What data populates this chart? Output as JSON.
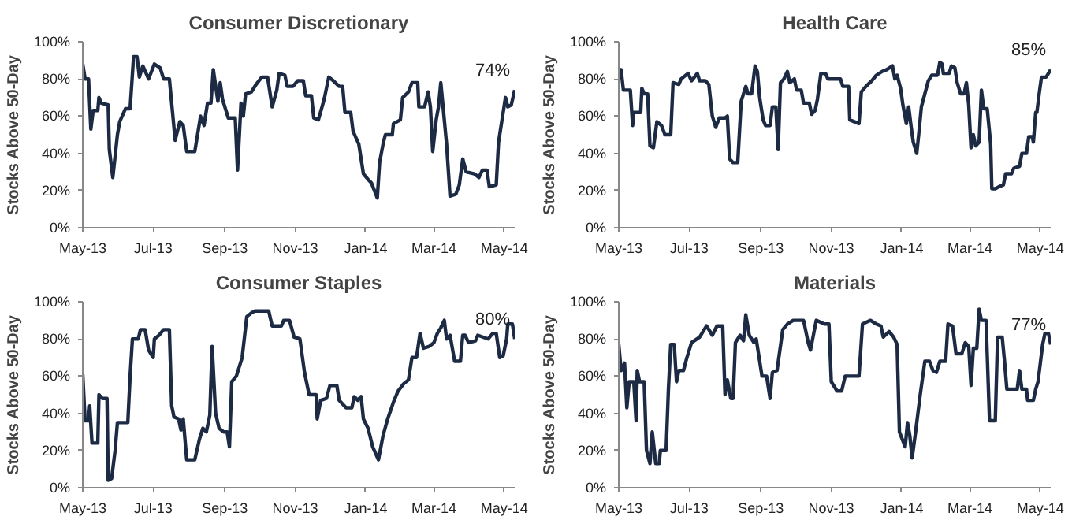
{
  "chart_data": [
    {
      "type": "line",
      "title": "Consumer Discretionary",
      "ylabel": "Stocks Above 50-Day",
      "xlim": [
        "2013-05-01",
        "2014-05-10"
      ],
      "ylim": [
        0,
        100
      ],
      "xticks": [
        {
          "value": "2013-05-01",
          "label": "May-13"
        },
        {
          "value": "2013-07-01",
          "label": "Jul-13"
        },
        {
          "value": "2013-09-01",
          "label": "Sep-13"
        },
        {
          "value": "2013-11-01",
          "label": "Nov-13"
        },
        {
          "value": "2014-01-01",
          "label": "Jan-14"
        },
        {
          "value": "2014-03-01",
          "label": "Mar-14"
        },
        {
          "value": "2014-05-01",
          "label": "May-14"
        }
      ],
      "yticks": [
        {
          "value": 0,
          "label": "0%"
        },
        {
          "value": 20,
          "label": "20%"
        },
        {
          "value": 40,
          "label": "40%"
        },
        {
          "value": 60,
          "label": "60%"
        },
        {
          "value": 80,
          "label": "80%"
        },
        {
          "value": 100,
          "label": "100%"
        }
      ],
      "grid": false,
      "marker": "none",
      "line_style": "solid",
      "annotations": [
        {
          "text": "74%",
          "x": "2014-05-10",
          "y": 74
        }
      ],
      "series": [
        {
          "color": "#1c2a44",
          "x": [
            "2013-05-01",
            "2013-05-03",
            "2013-05-06",
            "2013-05-08",
            "2013-05-10",
            "2013-05-14",
            "2013-05-15",
            "2013-05-17",
            "2013-05-23",
            "2013-05-24",
            "2013-05-27",
            "2013-05-31",
            "2013-06-02",
            "2013-06-07",
            "2013-06-11",
            "2013-06-14",
            "2013-06-17",
            "2013-06-19",
            "2013-06-22",
            "2013-06-27",
            "2013-07-02",
            "2013-07-07",
            "2013-07-10",
            "2013-07-15",
            "2013-07-20",
            "2013-07-24",
            "2013-07-27",
            "2013-07-30",
            "2013-08-06",
            "2013-08-11",
            "2013-08-14",
            "2013-08-17",
            "2013-08-20",
            "2013-08-22",
            "2013-08-26",
            "2013-08-28",
            "2013-08-30",
            "2013-09-04",
            "2013-09-10",
            "2013-09-12",
            "2013-09-15",
            "2013-09-17",
            "2013-09-19",
            "2013-09-24",
            "2013-09-28",
            "2013-10-03",
            "2013-10-08",
            "2013-10-12",
            "2013-10-16",
            "2013-10-18",
            "2013-10-23",
            "2013-10-25",
            "2013-10-30",
            "2013-11-03",
            "2013-11-08",
            "2013-11-10",
            "2013-11-15",
            "2013-11-17",
            "2013-11-21",
            "2013-11-26",
            "2013-11-30",
            "2013-12-04",
            "2013-12-09",
            "2013-12-12",
            "2013-12-14",
            "2013-12-19",
            "2013-12-21",
            "2013-12-26",
            "2013-12-30",
            "2014-01-03",
            "2014-01-06",
            "2014-01-11",
            "2014-01-13",
            "2014-01-16",
            "2014-01-18",
            "2014-01-24",
            "2014-01-25",
            "2014-01-31",
            "2014-02-02",
            "2014-02-07",
            "2014-02-10",
            "2014-02-15",
            "2014-02-16",
            "2014-02-21",
            "2014-02-24",
            "2014-02-26",
            "2014-02-28",
            "2014-03-03",
            "2014-03-05",
            "2014-03-07",
            "2014-03-12",
            "2014-03-15",
            "2014-03-20",
            "2014-03-23",
            "2014-03-26",
            "2014-03-29",
            "2014-04-05",
            "2014-04-09",
            "2014-04-12",
            "2014-04-16",
            "2014-04-18",
            "2014-04-24",
            "2014-04-26",
            "2014-05-02",
            "2014-05-04",
            "2014-05-07",
            "2014-05-10"
          ],
          "values": [
            88,
            80,
            80,
            53,
            63,
            63,
            70,
            67,
            66,
            42,
            27,
            50,
            57,
            64,
            64,
            92,
            92,
            81,
            87,
            80,
            88,
            86,
            80,
            80,
            47,
            57,
            55,
            41,
            41,
            60,
            55,
            67,
            67,
            85,
            68,
            78,
            69,
            59,
            59,
            31,
            67,
            60,
            72,
            73,
            77,
            81,
            81,
            65,
            74,
            83,
            82,
            76,
            76,
            79,
            79,
            71,
            71,
            59,
            58,
            69,
            81,
            79,
            76,
            76,
            62,
            62,
            52,
            45,
            29,
            26,
            24,
            16,
            35,
            45,
            50,
            50,
            56,
            58,
            70,
            73,
            78,
            78,
            65,
            65,
            73,
            65,
            41,
            58,
            65,
            78,
            45,
            17,
            18,
            23,
            37,
            30,
            29,
            27,
            31,
            31,
            22,
            23,
            46,
            70,
            65,
            66,
            74
          ]
        }
      ]
    },
    {
      "type": "line",
      "title": "Health Care",
      "ylabel": "Stocks Above 50-Day",
      "xlim": [
        "2013-05-01",
        "2014-05-10"
      ],
      "ylim": [
        0,
        100
      ],
      "xticks": [
        {
          "value": "2013-05-01",
          "label": "May-13"
        },
        {
          "value": "2013-07-01",
          "label": "Jul-13"
        },
        {
          "value": "2013-09-01",
          "label": "Sep-13"
        },
        {
          "value": "2013-11-01",
          "label": "Nov-13"
        },
        {
          "value": "2014-01-01",
          "label": "Jan-14"
        },
        {
          "value": "2014-03-01",
          "label": "Mar-14"
        },
        {
          "value": "2014-05-01",
          "label": "May-14"
        }
      ],
      "yticks": [
        {
          "value": 0,
          "label": "0%"
        },
        {
          "value": 20,
          "label": "20%"
        },
        {
          "value": 40,
          "label": "40%"
        },
        {
          "value": 60,
          "label": "60%"
        },
        {
          "value": 80,
          "label": "80%"
        },
        {
          "value": 100,
          "label": "100%"
        }
      ],
      "grid": false,
      "marker": "none",
      "line_style": "solid",
      "annotations": [
        {
          "text": "85%",
          "x": "2014-05-10",
          "y": 85
        }
      ],
      "series": [
        {
          "color": "#1c2a44",
          "x": [
            "2013-05-01",
            "2013-05-03",
            "2013-05-05",
            "2013-05-11",
            "2013-05-13",
            "2013-05-14",
            "2013-05-20",
            "2013-05-21",
            "2013-05-23",
            "2013-05-26",
            "2013-05-28",
            "2013-05-31",
            "2013-06-03",
            "2013-06-07",
            "2013-06-10",
            "2013-06-15",
            "2013-06-17",
            "2013-06-22",
            "2013-06-24",
            "2013-06-30",
            "2013-07-03",
            "2013-07-08",
            "2013-07-10",
            "2013-07-15",
            "2013-07-18",
            "2013-07-21",
            "2013-07-24",
            "2013-07-27",
            "2013-08-01",
            "2013-08-03",
            "2013-08-05",
            "2013-08-08",
            "2013-08-12",
            "2013-08-15",
            "2013-08-16",
            "2013-08-19",
            "2013-08-21",
            "2013-08-24",
            "2013-08-27",
            "2013-08-29",
            "2013-08-31",
            "2013-09-03",
            "2013-09-05",
            "2013-09-09",
            "2013-09-11",
            "2013-09-14",
            "2013-09-16",
            "2013-09-18",
            "2013-09-21",
            "2013-09-24",
            "2013-09-26",
            "2013-09-30",
            "2013-10-02",
            "2013-10-06",
            "2013-10-08",
            "2013-10-13",
            "2013-10-15",
            "2013-10-18",
            "2013-10-20",
            "2013-10-23",
            "2013-10-27",
            "2013-10-29",
            "2013-11-09",
            "2013-11-11",
            "2013-11-16",
            "2013-11-17",
            "2013-11-25",
            "2013-11-27",
            "2013-12-01",
            "2013-12-06",
            "2013-12-10",
            "2013-12-15",
            "2013-12-19",
            "2013-12-24",
            "2013-12-26",
            "2013-12-28",
            "2013-12-31",
            "2014-01-02",
            "2014-01-05",
            "2014-01-07",
            "2014-01-09",
            "2014-01-11",
            "2014-01-14",
            "2014-01-16",
            "2014-01-18",
            "2014-01-21",
            "2014-01-24",
            "2014-01-27",
            "2014-02-01",
            "2014-02-03",
            "2014-02-05",
            "2014-02-06",
            "2014-02-11",
            "2014-02-13",
            "2014-02-16",
            "2014-02-18",
            "2014-02-21",
            "2014-02-24",
            "2014-02-26",
            "2014-02-28",
            "2014-03-02",
            "2014-03-04",
            "2014-03-06",
            "2014-03-09",
            "2014-03-11",
            "2014-03-13",
            "2014-03-16",
            "2014-03-19",
            "2014-03-20",
            "2014-03-23",
            "2014-03-26",
            "2014-03-30",
            "2014-04-01",
            "2014-04-06",
            "2014-04-08",
            "2014-04-13",
            "2014-04-15",
            "2014-04-19",
            "2014-04-21",
            "2014-04-24",
            "2014-04-25",
            "2014-04-27",
            "2014-04-28",
            "2014-04-30",
            "2014-05-02",
            "2014-05-06",
            "2014-05-10"
          ],
          "values": [
            85,
            85,
            74,
            74,
            55,
            62,
            62,
            75,
            72,
            72,
            44,
            43,
            57,
            55,
            50,
            50,
            78,
            77,
            80,
            83,
            79,
            83,
            79,
            79,
            77,
            60,
            54,
            59,
            59,
            60,
            37,
            35,
            35,
            68,
            70,
            76,
            72,
            72,
            87,
            84,
            70,
            58,
            55,
            55,
            65,
            65,
            42,
            78,
            80,
            84,
            78,
            80,
            74,
            74,
            67,
            67,
            61,
            63,
            69,
            83,
            83,
            80,
            80,
            76,
            76,
            58,
            56,
            73,
            76,
            79,
            82,
            84,
            85,
            87,
            80,
            82,
            75,
            66,
            56,
            65,
            55,
            46,
            40,
            52,
            65,
            72,
            79,
            82,
            82,
            89,
            88,
            83,
            83,
            87,
            86,
            78,
            72,
            72,
            78,
            66,
            43,
            50,
            44,
            46,
            74,
            64,
            64,
            45,
            21,
            21,
            22,
            23,
            29,
            29,
            32,
            33,
            40,
            40,
            49,
            49,
            46,
            62,
            62,
            72,
            81,
            81,
            85
          ]
        }
      ]
    },
    {
      "type": "line",
      "title": "Consumer Staples",
      "ylabel": "Stocks Above 50-Day",
      "xlim": [
        "2013-05-01",
        "2014-05-10"
      ],
      "ylim": [
        0,
        100
      ],
      "xticks": [
        {
          "value": "2013-05-01",
          "label": "May-13"
        },
        {
          "value": "2013-07-01",
          "label": "Jul-13"
        },
        {
          "value": "2013-09-01",
          "label": "Sep-13"
        },
        {
          "value": "2013-11-01",
          "label": "Nov-13"
        },
        {
          "value": "2014-01-01",
          "label": "Jan-14"
        },
        {
          "value": "2014-03-01",
          "label": "Mar-14"
        },
        {
          "value": "2014-05-01",
          "label": "May-14"
        }
      ],
      "yticks": [
        {
          "value": 0,
          "label": "0%"
        },
        {
          "value": 20,
          "label": "20%"
        },
        {
          "value": 40,
          "label": "40%"
        },
        {
          "value": 60,
          "label": "60%"
        },
        {
          "value": 80,
          "label": "80%"
        },
        {
          "value": 100,
          "label": "100%"
        }
      ],
      "grid": false,
      "marker": "none",
      "line_style": "solid",
      "annotations": [
        {
          "text": "80%",
          "x": "2014-05-10",
          "y": 80
        }
      ],
      "series": [
        {
          "color": "#1c2a44",
          "x": [
            "2013-05-01",
            "2013-05-03",
            "2013-05-06",
            "2013-05-07",
            "2013-05-09",
            "2013-05-14",
            "2013-05-15",
            "2013-05-18",
            "2013-05-22",
            "2013-05-23",
            "2013-05-26",
            "2013-05-29",
            "2013-05-31",
            "2013-06-09",
            "2013-06-11",
            "2013-06-13",
            "2013-06-18",
            "2013-06-20",
            "2013-06-24",
            "2013-06-27",
            "2013-07-01",
            "2013-07-02",
            "2013-07-06",
            "2013-07-10",
            "2013-07-15",
            "2013-07-17",
            "2013-07-19",
            "2013-07-23",
            "2013-07-25",
            "2013-07-27",
            "2013-07-30",
            "2013-08-06",
            "2013-08-10",
            "2013-08-13",
            "2013-08-16",
            "2013-08-19",
            "2013-08-21",
            "2013-08-24",
            "2013-08-27",
            "2013-08-31",
            "2013-09-03",
            "2013-09-05",
            "2013-09-07",
            "2013-09-11",
            "2013-09-16",
            "2013-09-20",
            "2013-09-24",
            "2013-09-27",
            "2013-10-09",
            "2013-10-12",
            "2013-10-20",
            "2013-10-22",
            "2013-10-27",
            "2013-10-31",
            "2013-11-05",
            "2013-11-09",
            "2013-11-13",
            "2013-11-19",
            "2013-11-20",
            "2013-11-23",
            "2013-11-28",
            "2013-12-01",
            "2013-12-07",
            "2013-12-09",
            "2013-12-15",
            "2013-12-20",
            "2013-12-22",
            "2013-12-25",
            "2013-12-28",
            "2013-12-30",
            "2014-01-03",
            "2014-01-07",
            "2014-01-12",
            "2014-01-16",
            "2014-01-20",
            "2014-01-25",
            "2014-01-29",
            "2014-02-03",
            "2014-02-07",
            "2014-02-10",
            "2014-02-14",
            "2014-02-17",
            "2014-02-20",
            "2014-02-25",
            "2014-03-01",
            "2014-03-04",
            "2014-03-07",
            "2014-03-10",
            "2014-03-12",
            "2014-03-15",
            "2014-03-19",
            "2014-03-24",
            "2014-03-26",
            "2014-03-28",
            "2014-03-31",
            "2014-04-06",
            "2014-04-08",
            "2014-04-17",
            "2014-04-21",
            "2014-04-24",
            "2014-04-27",
            "2014-04-30",
            "2014-05-03",
            "2014-05-04",
            "2014-05-08",
            "2014-05-10"
          ],
          "values": [
            61,
            36,
            36,
            44,
            24,
            24,
            50,
            48,
            48,
            4,
            5,
            20,
            35,
            35,
            60,
            80,
            80,
            85,
            85,
            74,
            70,
            80,
            82,
            85,
            85,
            44,
            38,
            37,
            31,
            37,
            15,
            15,
            26,
            32,
            30,
            39,
            76,
            40,
            32,
            30,
            30,
            22,
            57,
            60,
            70,
            92,
            94,
            95,
            95,
            87,
            87,
            90,
            90,
            81,
            80,
            62,
            50,
            50,
            37,
            47,
            48,
            55,
            55,
            47,
            43,
            43,
            49,
            47,
            49,
            37,
            32,
            22,
            15,
            28,
            37,
            46,
            52,
            56,
            58,
            70,
            70,
            83,
            75,
            76,
            78,
            83,
            86,
            90,
            80,
            82,
            68,
            68,
            82,
            82,
            78,
            79,
            82,
            80,
            83,
            83,
            70,
            71,
            80,
            88,
            88,
            80
          ]
        }
      ]
    },
    {
      "type": "line",
      "title": "Materials",
      "ylabel": "Stocks Above 50-Day",
      "xlim": [
        "2013-05-01",
        "2014-05-10"
      ],
      "ylim": [
        0,
        100
      ],
      "xticks": [
        {
          "value": "2013-05-01",
          "label": "May-13"
        },
        {
          "value": "2013-07-01",
          "label": "Jul-13"
        },
        {
          "value": "2013-09-01",
          "label": "Sep-13"
        },
        {
          "value": "2013-11-01",
          "label": "Nov-13"
        },
        {
          "value": "2014-01-01",
          "label": "Jan-14"
        },
        {
          "value": "2014-03-01",
          "label": "Mar-14"
        },
        {
          "value": "2014-05-01",
          "label": "May-14"
        }
      ],
      "yticks": [
        {
          "value": 0,
          "label": "0%"
        },
        {
          "value": 20,
          "label": "20%"
        },
        {
          "value": 40,
          "label": "40%"
        },
        {
          "value": 60,
          "label": "60%"
        },
        {
          "value": 80,
          "label": "80%"
        },
        {
          "value": 100,
          "label": "100%"
        }
      ],
      "grid": false,
      "marker": "none",
      "line_style": "solid",
      "annotations": [
        {
          "text": "77%",
          "x": "2014-05-10",
          "y": 77
        }
      ],
      "series": [
        {
          "color": "#1c2a44",
          "x": [
            "2013-05-01",
            "2013-05-03",
            "2013-05-06",
            "2013-05-08",
            "2013-05-10",
            "2013-05-14",
            "2013-05-16",
            "2013-05-17",
            "2013-05-19",
            "2013-05-23",
            "2013-05-25",
            "2013-05-28",
            "2013-05-30",
            "2013-06-02",
            "2013-06-05",
            "2013-06-06",
            "2013-06-11",
            "2013-06-13",
            "2013-06-15",
            "2013-06-18",
            "2013-06-20",
            "2013-06-22",
            "2013-06-26",
            "2013-06-29",
            "2013-07-03",
            "2013-07-10",
            "2013-07-16",
            "2013-07-21",
            "2013-07-25",
            "2013-07-30",
            "2013-08-01",
            "2013-08-03",
            "2013-08-06",
            "2013-08-08",
            "2013-08-10",
            "2013-08-14",
            "2013-08-17",
            "2013-08-19",
            "2013-08-22",
            "2013-08-26",
            "2013-08-28",
            "2013-09-02",
            "2013-09-06",
            "2013-09-09",
            "2013-09-11",
            "2013-09-15",
            "2013-09-20",
            "2013-09-24",
            "2013-09-29",
            "2013-10-08",
            "2013-10-12",
            "2013-10-14",
            "2013-10-19",
            "2013-10-26",
            "2013-10-30",
            "2013-11-01",
            "2013-11-06",
            "2013-11-10",
            "2013-11-13",
            "2013-11-25",
            "2013-11-28",
            "2013-12-05",
            "2013-12-10",
            "2013-12-14",
            "2013-12-16",
            "2013-12-21",
            "2013-12-25",
            "2013-12-28",
            "2013-12-30",
            "2014-01-04",
            "2014-01-06",
            "2014-01-08",
            "2014-01-10",
            "2014-01-13",
            "2014-01-17",
            "2014-01-21",
            "2014-01-25",
            "2014-01-28",
            "2014-01-31",
            "2014-02-03",
            "2014-02-08",
            "2014-02-10",
            "2014-02-14",
            "2014-02-17",
            "2014-02-22",
            "2014-02-25",
            "2014-02-28",
            "2014-03-02",
            "2014-03-04",
            "2014-03-07",
            "2014-03-09",
            "2014-03-11",
            "2014-03-15",
            "2014-03-18",
            "2014-03-23",
            "2014-03-25",
            "2014-03-29",
            "2014-03-31",
            "2014-04-02",
            "2014-04-11",
            "2014-04-13",
            "2014-04-15",
            "2014-04-19",
            "2014-04-20",
            "2014-04-25",
            "2014-04-27",
            "2014-04-29",
            "2014-05-03",
            "2014-05-05",
            "2014-05-08",
            "2014-05-10"
          ],
          "values": [
            77,
            63,
            67,
            43,
            57,
            57,
            36,
            63,
            57,
            57,
            20,
            13,
            30,
            13,
            13,
            20,
            20,
            53,
            77,
            77,
            57,
            63,
            63,
            70,
            78,
            81,
            87,
            82,
            87,
            87,
            50,
            58,
            48,
            48,
            78,
            82,
            79,
            93,
            82,
            78,
            80,
            60,
            60,
            48,
            62,
            63,
            85,
            88,
            90,
            90,
            78,
            74,
            90,
            88,
            88,
            57,
            52,
            52,
            60,
            60,
            88,
            90,
            88,
            87,
            81,
            84,
            81,
            77,
            30,
            22,
            35,
            28,
            16,
            30,
            50,
            68,
            68,
            63,
            62,
            68,
            68,
            88,
            87,
            72,
            72,
            78,
            76,
            55,
            75,
            75,
            96,
            90,
            90,
            36,
            36,
            81,
            81,
            68,
            53,
            53,
            63,
            53,
            53,
            47,
            47,
            53,
            57,
            77,
            83,
            83,
            77
          ]
        }
      ]
    }
  ]
}
